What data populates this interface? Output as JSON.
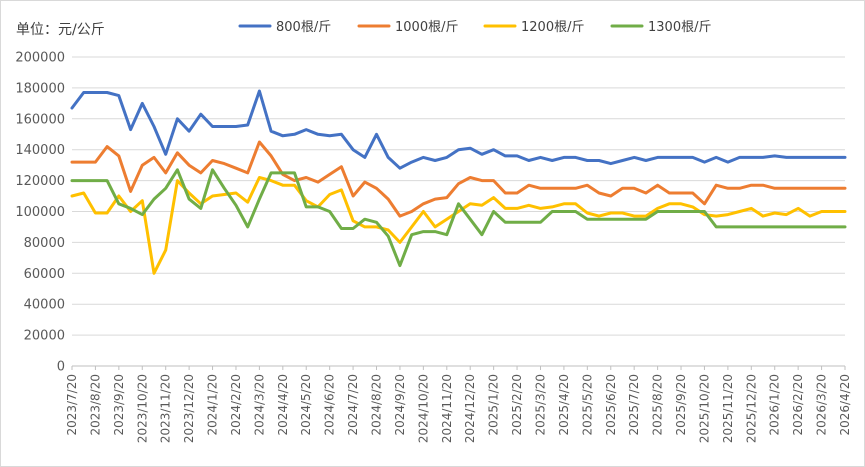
{
  "chart_data": {
    "type": "line",
    "title": "",
    "unit_label": "单位：元/公斤",
    "xlabel": "",
    "ylabel": "",
    "ylim": [
      0,
      200000
    ],
    "yticks": [
      0,
      20000,
      40000,
      60000,
      80000,
      100000,
      120000,
      140000,
      160000,
      180000,
      200000
    ],
    "ytick_labels": [
      "0",
      "20000",
      "40000",
      "60000",
      "80000",
      "100000",
      "120000",
      "140000",
      "160000",
      "180000",
      "200000"
    ],
    "grid": true,
    "legend_position": "top",
    "x_tick_labels": [
      "2023/7/20",
      "2023/8/20",
      "2023/9/20",
      "2023/10/20",
      "2023/11/20",
      "2023/12/20",
      "2024/1/20",
      "2024/2/20",
      "2024/3/20",
      "2024/4/20",
      "2024/5/20",
      "2024/6/20",
      "2024/7/20",
      "2024/8/20",
      "2024/9/20",
      "2024/10/20",
      "2024/11/20",
      "2024/12/20",
      "2025/1/20",
      "2025/2/20",
      "2025/3/20",
      "2025/4/20",
      "2025/5/20",
      "2025/6/20",
      "2025/7/20",
      "2025/8/20",
      "2025/9/20",
      "2025/10/20",
      "2025/11/20",
      "2025/12/20",
      "2026/1/20",
      "2026/2/20",
      "2026/3/20",
      "2026/4/20"
    ],
    "series": [
      {
        "name": "800根/斤",
        "color": "#4472c4",
        "values": [
          167000,
          177000,
          177000,
          177000,
          175000,
          153000,
          170000,
          155000,
          137000,
          160000,
          152000,
          163000,
          155000,
          155000,
          155000,
          156000,
          178000,
          152000,
          149000,
          150000,
          153000,
          150000,
          149000,
          150000,
          140000,
          135000,
          150000,
          135000,
          128000,
          132000,
          135000,
          133000,
          135000,
          140000,
          141000,
          137000,
          140000,
          136000,
          136000,
          133000,
          135000,
          133000,
          135000,
          135000,
          133000,
          133000,
          131000,
          133000,
          135000,
          133000,
          135000,
          135000,
          135000,
          135000,
          132000,
          135000,
          132000,
          135000,
          135000,
          135000,
          136000,
          135000,
          135000,
          135000,
          135000,
          135000,
          135000
        ]
      },
      {
        "name": "1000根/斤",
        "color": "#ed7d31",
        "values": [
          132000,
          132000,
          132000,
          142000,
          136000,
          113000,
          130000,
          135000,
          125000,
          138000,
          130000,
          125000,
          133000,
          131000,
          128000,
          125000,
          145000,
          136000,
          124000,
          120000,
          122000,
          119000,
          124000,
          129000,
          110000,
          119000,
          115000,
          108000,
          97000,
          100000,
          105000,
          108000,
          109000,
          118000,
          122000,
          120000,
          120000,
          112000,
          112000,
          117000,
          115000,
          115000,
          115000,
          115000,
          117000,
          112000,
          110000,
          115000,
          115000,
          112000,
          117000,
          112000,
          112000,
          112000,
          105000,
          117000,
          115000,
          115000,
          117000,
          117000,
          115000,
          115000,
          115000,
          115000,
          115000,
          115000,
          115000
        ]
      },
      {
        "name": "1200根/斤",
        "color": "#ffc000",
        "values": [
          110000,
          112000,
          99000,
          99000,
          110000,
          100000,
          107000,
          60000,
          75000,
          120000,
          112000,
          105000,
          110000,
          111000,
          112000,
          106000,
          122000,
          120000,
          117000,
          117000,
          107000,
          103000,
          111000,
          114000,
          94000,
          90000,
          90000,
          88000,
          80000,
          90000,
          100000,
          90000,
          95000,
          100000,
          105000,
          104000,
          109000,
          102000,
          102000,
          104000,
          102000,
          103000,
          105000,
          105000,
          99000,
          97000,
          99000,
          99000,
          97000,
          97000,
          102000,
          105000,
          105000,
          103000,
          98000,
          97000,
          98000,
          100000,
          102000,
          97000,
          99000,
          98000,
          102000,
          97000,
          100000,
          100000,
          100000
        ]
      },
      {
        "name": "1300根/斤",
        "color": "#70ad47",
        "values": [
          120000,
          120000,
          120000,
          120000,
          105000,
          102000,
          98000,
          108000,
          115000,
          127000,
          108000,
          102000,
          127000,
          115000,
          104000,
          90000,
          108000,
          125000,
          125000,
          125000,
          103000,
          103000,
          100000,
          89000,
          89000,
          95000,
          93000,
          84000,
          65000,
          85000,
          87000,
          87000,
          85000,
          105000,
          95000,
          85000,
          100000,
          93000,
          93000,
          93000,
          93000,
          100000,
          100000,
          100000,
          95000,
          95000,
          95000,
          95000,
          95000,
          95000,
          100000,
          100000,
          100000,
          100000,
          100000,
          90000,
          90000,
          90000,
          90000,
          90000,
          90000,
          90000,
          90000,
          90000,
          90000,
          90000,
          90000
        ]
      }
    ]
  }
}
